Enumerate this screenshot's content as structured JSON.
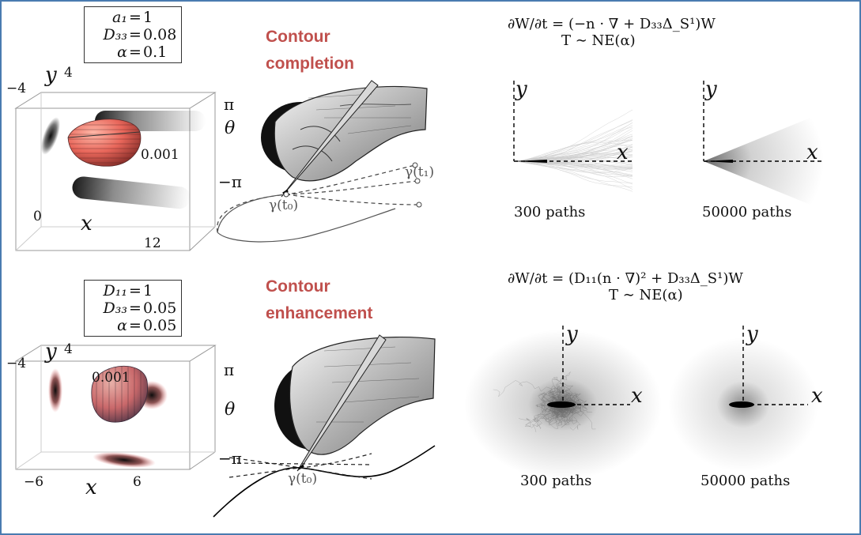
{
  "top": {
    "params": [
      {
        "name": "a₁",
        "value": "1"
      },
      {
        "name": "D₃₃",
        "value": "0.08"
      },
      {
        "name": "α",
        "value": "0.1"
      }
    ],
    "title_line1": "Contour",
    "title_line2": "completion",
    "equation_line1": "∂W/∂t = (−n · ∇ + D₃₃Δ_S¹)W",
    "equation_line2": "T ∼ NE(α)",
    "iso_label": "0.001",
    "axes": {
      "y": "y",
      "x": "x",
      "theta": "θ",
      "x_min": "0",
      "x_max": "12",
      "y_min": "−4",
      "y_max": "4",
      "theta_max": "π",
      "theta_min": "−π"
    },
    "curve_labels": {
      "start": "γ(t₀)",
      "end": "γ(t₁)"
    },
    "sim_few": {
      "caption": "300 paths",
      "x": "x",
      "y": "y"
    },
    "sim_many": {
      "caption": "50000 paths",
      "x": "x",
      "y": "y"
    }
  },
  "bottom": {
    "params": [
      {
        "name": "D₁₁",
        "value": "1"
      },
      {
        "name": "D₃₃",
        "value": "0.05"
      },
      {
        "name": "α",
        "value": "0.05"
      }
    ],
    "title_line1": "Contour",
    "title_line2": "enhancement",
    "equation_line1": "∂W/∂t = (D₁₁(n · ∇)² + D₃₃Δ_S¹)W",
    "equation_line2": "T ∼ NE(α)",
    "iso_label": "0.001",
    "axes": {
      "y": "y",
      "x": "x",
      "theta": "θ",
      "x_min": "−6",
      "x_max": "6",
      "y_min": "−4",
      "y_max": "4",
      "theta_max": "π",
      "theta_min": "−π"
    },
    "curve_labels": {
      "start": "γ(t₀)"
    },
    "sim_few": {
      "caption": "300 paths",
      "x": "x",
      "y": "y"
    },
    "sim_many": {
      "caption": "50000 paths",
      "x": "x",
      "y": "y"
    }
  },
  "colors": {
    "title": "#c0504d",
    "frame": "#4a7bb0",
    "surface": "#e8665a"
  }
}
